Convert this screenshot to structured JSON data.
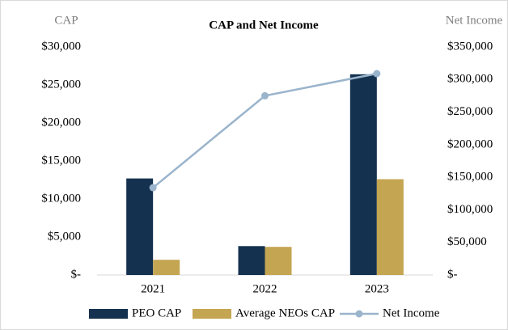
{
  "chart_data": {
    "type": "bar",
    "title": "CAP and Net Income",
    "y_label": "CAP",
    "y2_label": "Net Income",
    "categories": [
      "2021",
      "2022",
      "2023"
    ],
    "series": [
      {
        "name": "PEO CAP",
        "color": "#14314f",
        "values": [
          12700,
          3800,
          26400
        ]
      },
      {
        "name": "Average NEOs CAP",
        "color": "#c4a552",
        "values": [
          2000,
          3700,
          12600
        ]
      },
      {
        "name": "Net Income",
        "color": "#9ab4cc",
        "type": "line",
        "axis": "y2",
        "values": [
          134000,
          275000,
          309000
        ]
      }
    ],
    "ylim": [
      0,
      30000
    ],
    "yticks": [
      {
        "value": 0,
        "label": "$-"
      },
      {
        "value": 5000,
        "label": "$5,000"
      },
      {
        "value": 10000,
        "label": "$10,000"
      },
      {
        "value": 15000,
        "label": "$15,000"
      },
      {
        "value": 20000,
        "label": "$20,000"
      },
      {
        "value": 25000,
        "label": "$25,000"
      },
      {
        "value": 30000,
        "label": "$30,000"
      }
    ],
    "y2lim": [
      0,
      350000
    ],
    "y2ticks": [
      {
        "value": 0,
        "label": "$-"
      },
      {
        "value": 50000,
        "label": "$50,000"
      },
      {
        "value": 100000,
        "label": "$100,000"
      },
      {
        "value": 150000,
        "label": "$150,000"
      },
      {
        "value": 200000,
        "label": "$200,000"
      },
      {
        "value": 250000,
        "label": "$250,000"
      },
      {
        "value": 300000,
        "label": "$300,000"
      },
      {
        "value": 350000,
        "label": "$350,000"
      }
    ],
    "legend": "bottom"
  }
}
